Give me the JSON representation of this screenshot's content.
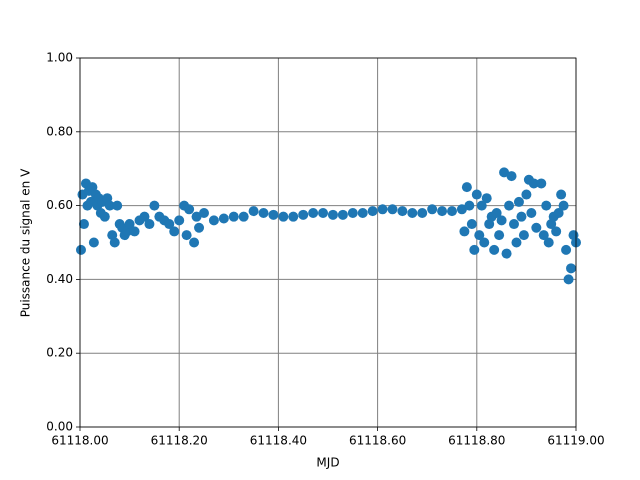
{
  "chart_data": {
    "type": "scatter",
    "x_label": "MJD",
    "y_label": "Puissance du signal en V",
    "xlim": [
      61118.0,
      61119.0
    ],
    "xticks": [
      {
        "value": 61118.0,
        "label": "61118.00"
      },
      {
        "value": 61118.2,
        "label": "61118.20"
      },
      {
        "value": 61118.4,
        "label": "61118.40"
      },
      {
        "value": 61118.6,
        "label": "61118.60"
      },
      {
        "value": 61118.8,
        "label": "61118.80"
      },
      {
        "value": 61119.0,
        "label": "61119.00"
      }
    ],
    "ylim": [
      0,
      1
    ],
    "yticks": [
      {
        "value": 0,
        "label": "0.00"
      },
      {
        "value": 0.2,
        "label": "0.20"
      },
      {
        "value": 0.4,
        "label": "0.40"
      },
      {
        "value": 0.6,
        "label": "0.60"
      },
      {
        "value": 0.8,
        "label": "0.80"
      },
      {
        "value": 1,
        "label": "1.00"
      }
    ],
    "grid": true,
    "series": [
      {
        "color": "#1f77b4",
        "x": [
          61118.002,
          61118.005,
          61118.008,
          61118.012,
          61118.015,
          61118.018,
          61118.022,
          61118.025,
          61118.028,
          61118.032,
          61118.035,
          61118.038,
          61118.042,
          61118.045,
          61118.05,
          61118.055,
          61118.06,
          61118.065,
          61118.07,
          61118.075,
          61118.08,
          61118.085,
          61118.09,
          61118.095,
          61118.1,
          61118.11,
          61118.12,
          61118.13,
          61118.14,
          61118.15,
          61118.16,
          61118.17,
          61118.18,
          61118.19,
          61118.2,
          61118.21,
          61118.215,
          61118.22,
          61118.23,
          61118.235,
          61118.24,
          61118.25,
          61118.27,
          61118.29,
          61118.31,
          61118.33,
          61118.35,
          61118.37,
          61118.39,
          61118.41,
          61118.43,
          61118.45,
          61118.47,
          61118.49,
          61118.51,
          61118.53,
          61118.55,
          61118.57,
          61118.59,
          61118.61,
          61118.63,
          61118.65,
          61118.67,
          61118.69,
          61118.71,
          61118.73,
          61118.75,
          61118.77,
          61118.775,
          61118.78,
          61118.785,
          61118.79,
          61118.795,
          61118.8,
          61118.805,
          61118.81,
          61118.815,
          61118.82,
          61118.825,
          61118.83,
          61118.835,
          61118.84,
          61118.845,
          61118.85,
          61118.855,
          61118.86,
          61118.865,
          61118.87,
          61118.875,
          61118.88,
          61118.885,
          61118.89,
          61118.895,
          61118.9,
          61118.905,
          61118.91,
          61118.915,
          61118.92,
          61118.93,
          61118.935,
          61118.94,
          61118.945,
          61118.95,
          61118.955,
          61118.96,
          61118.965,
          61118.97,
          61118.975,
          61118.98,
          61118.985,
          61118.99,
          61118.995,
          61119.0
        ],
        "values": [
          0.48,
          0.63,
          0.55,
          0.66,
          0.6,
          0.64,
          0.61,
          0.65,
          0.5,
          0.63,
          0.6,
          0.62,
          0.58,
          0.61,
          0.57,
          0.62,
          0.6,
          0.52,
          0.5,
          0.6,
          0.55,
          0.54,
          0.52,
          0.53,
          0.55,
          0.53,
          0.56,
          0.57,
          0.55,
          0.6,
          0.57,
          0.56,
          0.55,
          0.53,
          0.56,
          0.6,
          0.52,
          0.59,
          0.5,
          0.57,
          0.54,
          0.58,
          0.56,
          0.565,
          0.57,
          0.57,
          0.585,
          0.58,
          0.575,
          0.57,
          0.57,
          0.575,
          0.58,
          0.58,
          0.575,
          0.575,
          0.58,
          0.58,
          0.585,
          0.59,
          0.59,
          0.585,
          0.58,
          0.58,
          0.59,
          0.585,
          0.585,
          0.59,
          0.53,
          0.65,
          0.6,
          0.55,
          0.48,
          0.63,
          0.52,
          0.6,
          0.5,
          0.62,
          0.55,
          0.57,
          0.48,
          0.58,
          0.52,
          0.56,
          0.69,
          0.47,
          0.6,
          0.68,
          0.55,
          0.5,
          0.61,
          0.57,
          0.52,
          0.63,
          0.67,
          0.58,
          0.66,
          0.54,
          0.66,
          0.52,
          0.6,
          0.5,
          0.55,
          0.57,
          0.53,
          0.58,
          0.63,
          0.6,
          0.48,
          0.4,
          0.43,
          0.52,
          0.5
        ]
      }
    ]
  }
}
